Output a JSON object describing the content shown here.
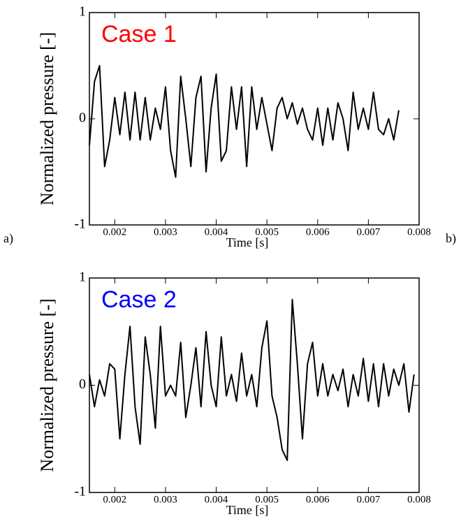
{
  "chart_data": [
    {
      "type": "line",
      "annotation": "Case 1",
      "annotation_color": "#ff0000",
      "panel_label": "a)",
      "xlabel": "Time [s]",
      "ylabel": "Normalized pressure [-]",
      "xlim": [
        0.0015,
        0.008
      ],
      "xticks": [
        0.002,
        0.003,
        0.004,
        0.005,
        0.006,
        0.007,
        0.008
      ],
      "ylim": [
        -1,
        1
      ],
      "yticks": [
        -1,
        0,
        1
      ],
      "x": [
        0.0015,
        0.0016,
        0.0017,
        0.0018,
        0.0019,
        0.002,
        0.0021,
        0.0022,
        0.0023,
        0.0024,
        0.0025,
        0.0026,
        0.0027,
        0.0028,
        0.0029,
        0.003,
        0.0031,
        0.0032,
        0.0033,
        0.0034,
        0.0035,
        0.0036,
        0.0037,
        0.0038,
        0.0039,
        0.004,
        0.0041,
        0.0042,
        0.0043,
        0.0044,
        0.0045,
        0.0046,
        0.0047,
        0.0048,
        0.0049,
        0.005,
        0.0051,
        0.0052,
        0.0053,
        0.0054,
        0.0055,
        0.0056,
        0.0057,
        0.0058,
        0.0059,
        0.006,
        0.0061,
        0.0062,
        0.0063,
        0.0064,
        0.0065,
        0.0066,
        0.0067,
        0.0068,
        0.0069,
        0.007,
        0.0071,
        0.0072,
        0.0073,
        0.0074,
        0.0075,
        0.0076
      ],
      "series": [
        {
          "color": "#000000",
          "values": [
            -0.25,
            0.35,
            0.5,
            -0.45,
            -0.2,
            0.2,
            -0.15,
            0.25,
            -0.2,
            0.25,
            -0.2,
            0.2,
            -0.2,
            0.1,
            -0.1,
            0.3,
            -0.3,
            -0.55,
            0.4,
            0.0,
            -0.45,
            0.2,
            0.4,
            -0.5,
            0.1,
            0.42,
            -0.4,
            -0.3,
            0.3,
            -0.1,
            0.3,
            -0.45,
            0.3,
            -0.1,
            0.2,
            -0.05,
            -0.3,
            0.1,
            0.2,
            0.0,
            0.15,
            -0.05,
            0.1,
            -0.1,
            -0.2,
            0.1,
            -0.25,
            0.1,
            -0.2,
            0.15,
            0.0,
            -0.3,
            0.25,
            -0.1,
            0.1,
            -0.1,
            0.25,
            -0.1,
            -0.15,
            0.0,
            -0.2,
            0.08
          ]
        }
      ]
    },
    {
      "type": "line",
      "annotation": "Case 2",
      "annotation_color": "#0000ff",
      "panel_label": "b)",
      "xlabel": "Time [s]",
      "ylabel": "Normalized pressure [-]",
      "xlim": [
        0.0015,
        0.008
      ],
      "xticks": [
        0.002,
        0.003,
        0.004,
        0.005,
        0.006,
        0.007,
        0.008
      ],
      "ylim": [
        -1,
        1
      ],
      "yticks": [
        -1,
        0,
        1
      ],
      "x": [
        0.0015,
        0.0016,
        0.0017,
        0.0018,
        0.0019,
        0.002,
        0.0021,
        0.0022,
        0.0023,
        0.0024,
        0.0025,
        0.0026,
        0.0027,
        0.0028,
        0.0029,
        0.003,
        0.0031,
        0.0032,
        0.0033,
        0.0034,
        0.0035,
        0.0036,
        0.0037,
        0.0038,
        0.0039,
        0.004,
        0.0041,
        0.0042,
        0.0043,
        0.0044,
        0.0045,
        0.0046,
        0.0047,
        0.0048,
        0.0049,
        0.005,
        0.0051,
        0.0052,
        0.0053,
        0.0054,
        0.0055,
        0.0056,
        0.0057,
        0.0058,
        0.0059,
        0.006,
        0.0061,
        0.0062,
        0.0063,
        0.0064,
        0.0065,
        0.0066,
        0.0067,
        0.0068,
        0.0069,
        0.007,
        0.0071,
        0.0072,
        0.0073,
        0.0074,
        0.0075,
        0.0076,
        0.0077,
        0.0078,
        0.0079
      ],
      "series": [
        {
          "color": "#000000",
          "values": [
            0.1,
            -0.2,
            0.05,
            -0.1,
            0.2,
            0.15,
            -0.5,
            0.1,
            0.55,
            -0.2,
            -0.55,
            0.45,
            0.1,
            -0.4,
            0.55,
            -0.1,
            0.0,
            -0.1,
            0.4,
            -0.3,
            0.0,
            0.35,
            -0.2,
            0.5,
            0.0,
            -0.2,
            0.45,
            -0.1,
            0.1,
            -0.15,
            0.3,
            -0.1,
            0.1,
            -0.2,
            0.35,
            0.6,
            -0.1,
            -0.3,
            -0.6,
            -0.7,
            0.8,
            0.2,
            -0.5,
            0.2,
            0.4,
            -0.1,
            0.2,
            -0.1,
            0.1,
            -0.05,
            0.15,
            -0.2,
            0.1,
            -0.1,
            0.25,
            -0.15,
            0.2,
            -0.2,
            0.2,
            -0.1,
            0.15,
            0.0,
            0.2,
            -0.25,
            0.1
          ]
        }
      ]
    }
  ]
}
